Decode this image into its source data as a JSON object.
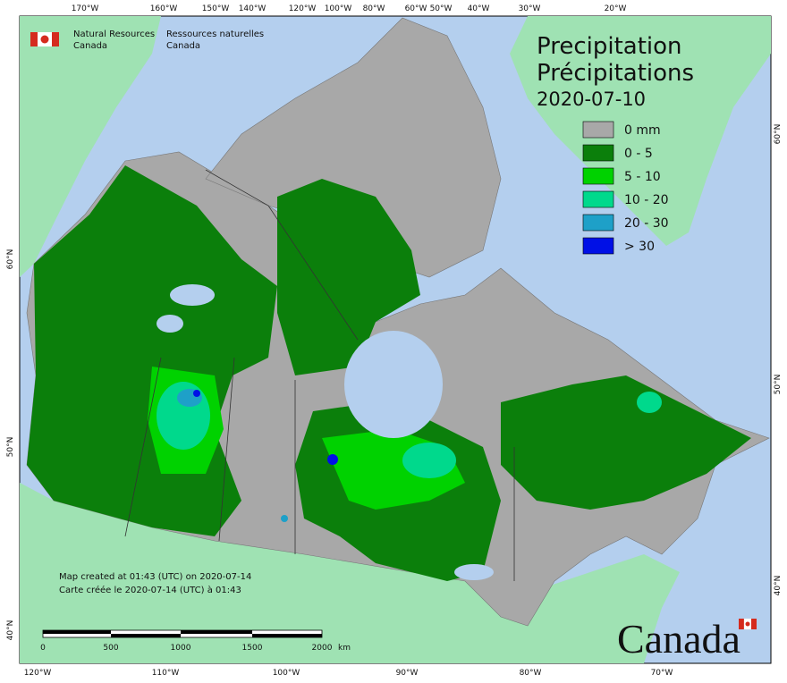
{
  "header": {
    "agency_en": [
      "Natural Resources",
      "Canada"
    ],
    "agency_fr": [
      "Ressources naturelles",
      "Canada"
    ]
  },
  "title": {
    "en": "Precipitation",
    "fr": "Précipitations",
    "date": "2020-07-10"
  },
  "legend": {
    "items": [
      {
        "label": "0 mm",
        "color": "#a8a8a8"
      },
      {
        "label": "0 - 5",
        "color": "#0b7f0b"
      },
      {
        "label": "5 - 10",
        "color": "#00d200"
      },
      {
        "label": "10 - 20",
        "color": "#00d98c"
      },
      {
        "label": "20 - 30",
        "color": "#1ea0c8"
      },
      {
        "label": "> 30",
        "color": "#0010e6"
      }
    ]
  },
  "notes": [
    "Map created at 01:43 (UTC) on 2020-07-14",
    "Carte créée le 2020-07-14 (UTC) à 01:43"
  ],
  "scale_bar": {
    "ticks": [
      "0",
      "500",
      "1000",
      "1500",
      "2000"
    ],
    "unit": "km"
  },
  "graticule": {
    "top": [
      "170°W",
      "160°W",
      "150°W",
      "140°W",
      "120°W",
      "100°W",
      "80°W",
      "60°W",
      "50°W",
      "40°W",
      "30°W",
      "20°W"
    ],
    "bottom": [
      "120°W",
      "110°W",
      "100°W",
      "90°W",
      "80°W",
      "70°W"
    ],
    "left": [
      "60°N",
      "50°N",
      "40°N"
    ],
    "right": [
      "60°N",
      "50°N",
      "40°N"
    ]
  },
  "wordmark": "Canada"
}
